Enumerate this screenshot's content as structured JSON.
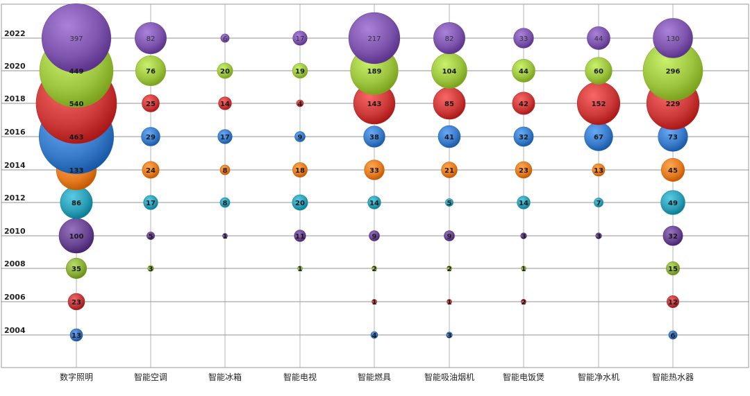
{
  "chart_data": {
    "type": "bubble",
    "title": "",
    "xlabel": "",
    "ylabel": "",
    "categories": [
      "数字照明",
      "智能空调",
      "智能冰箱",
      "智能电视",
      "智能燃具",
      "智能吸油烟机",
      "智能电饭煲",
      "智能净水机",
      "智能热水器"
    ],
    "years": [
      "2004",
      "2006",
      "2008",
      "2010",
      "2012",
      "2014",
      "2016",
      "2018",
      "2020",
      "2022"
    ],
    "grid": true,
    "legend": "none",
    "series": [
      {
        "year": "2004",
        "color": "#3a72c0",
        "values": [
          13,
          null,
          null,
          null,
          4,
          3,
          null,
          null,
          6
        ]
      },
      {
        "year": "2006",
        "color": "#c0393b",
        "values": [
          23,
          null,
          null,
          null,
          1,
          1,
          2,
          null,
          12
        ]
      },
      {
        "year": "2008",
        "color": "#8aaf3a",
        "values": [
          35,
          3,
          null,
          1,
          2,
          2,
          1,
          null,
          15
        ]
      },
      {
        "year": "2010",
        "color": "#6a4592",
        "values": [
          100,
          5,
          1,
          11,
          9,
          9,
          3,
          3,
          32
        ]
      },
      {
        "year": "2012",
        "color": "#2c9eb5",
        "values": [
          86,
          17,
          8,
          20,
          14,
          5,
          14,
          7,
          49
        ]
      },
      {
        "year": "2014",
        "color": "#e57b22",
        "values": [
          133,
          24,
          8,
          18,
          33,
          21,
          23,
          13,
          45
        ]
      },
      {
        "year": "2016",
        "color": "#3a7cc9",
        "values": [
          463,
          29,
          17,
          9,
          38,
          41,
          32,
          67,
          73
        ]
      },
      {
        "year": "2018",
        "color": "#cc3a3a",
        "values": [
          540,
          25,
          14,
          4,
          143,
          85,
          42,
          152,
          229
        ]
      },
      {
        "year": "2020",
        "color": "#9cc43e",
        "values": [
          449,
          76,
          20,
          19,
          189,
          104,
          44,
          60,
          296
        ]
      },
      {
        "year": "2022",
        "color": "#7e55ad",
        "values": [
          397,
          82,
          6,
          17,
          217,
          82,
          33,
          44,
          130
        ]
      }
    ]
  }
}
